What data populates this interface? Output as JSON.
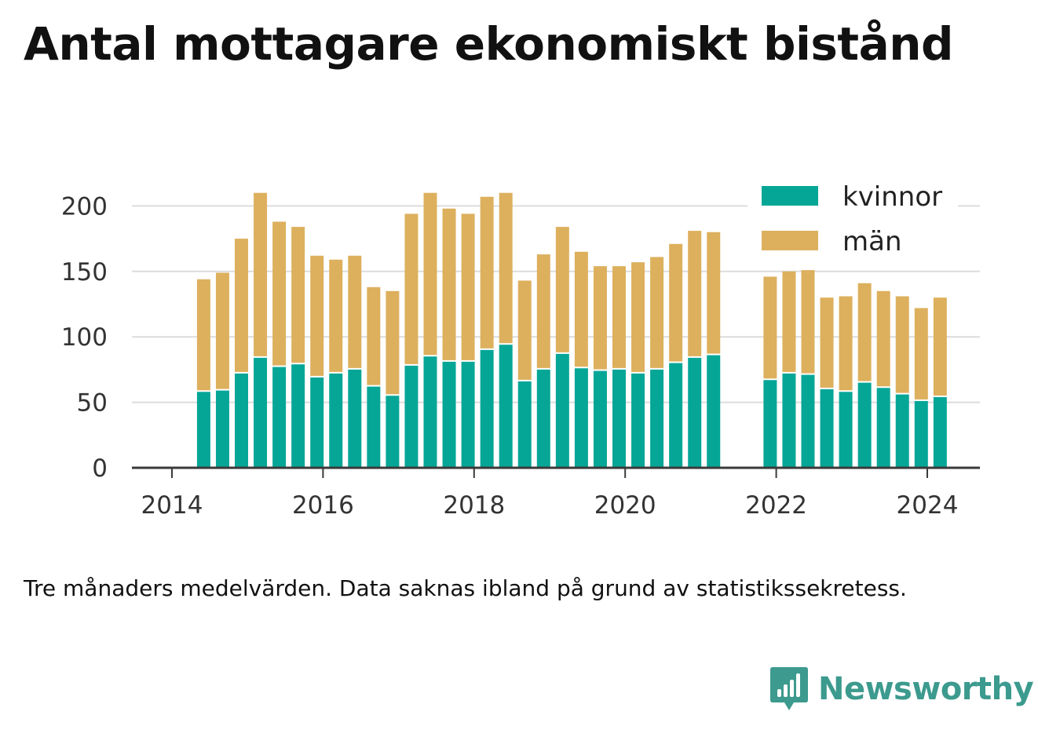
{
  "title": "Antal mottagare ekonomiskt bistånd",
  "note": "Tre månaders medelvärden. Data saknas ibland på grund av statistikssekretess.",
  "brand": {
    "name": "Newsworthy",
    "icon": "bar-chart-speech-bubble-icon",
    "color": "#3c9a8e"
  },
  "chart_data": {
    "type": "bar",
    "stacked": true,
    "x_axis": {
      "tick_labels": [
        "2014",
        "2016",
        "2018",
        "2020",
        "2022",
        "2024"
      ]
    },
    "y_axis": {
      "ticks": [
        0,
        50,
        100,
        150,
        200
      ],
      "ylim": [
        0,
        215
      ]
    },
    "grid": true,
    "legend_position": "top-right",
    "x": [
      2014.42,
      2014.67,
      2014.92,
      2015.17,
      2015.42,
      2015.67,
      2015.92,
      2016.17,
      2016.42,
      2016.67,
      2016.92,
      2017.17,
      2017.42,
      2017.67,
      2017.92,
      2018.17,
      2018.42,
      2018.67,
      2018.92,
      2019.17,
      2019.42,
      2019.67,
      2019.92,
      2020.17,
      2020.42,
      2020.67,
      2020.92,
      2021.17,
      2021.92,
      2022.17,
      2022.42,
      2022.67,
      2022.92,
      2023.17,
      2023.42,
      2023.67,
      2023.92,
      2024.17
    ],
    "series": [
      {
        "name": "kvinnor",
        "color": "#06a697",
        "values": [
          58,
          59,
          72,
          84,
          77,
          79,
          69,
          72,
          75,
          62,
          55,
          78,
          85,
          81,
          81,
          90,
          94,
          66,
          75,
          87,
          76,
          74,
          75,
          72,
          75,
          80,
          84,
          86,
          67,
          72,
          71,
          60,
          58,
          65,
          61,
          56,
          51,
          54
        ]
      },
      {
        "name": "män",
        "color": "#ddb05e",
        "values": [
          86,
          90,
          103,
          126,
          111,
          105,
          93,
          87,
          87,
          76,
          80,
          116,
          125,
          117,
          113,
          117,
          116,
          77,
          88,
          97,
          89,
          80,
          79,
          85,
          86,
          91,
          97,
          94,
          79,
          78,
          80,
          70,
          73,
          76,
          74,
          75,
          71,
          76
        ]
      }
    ]
  }
}
